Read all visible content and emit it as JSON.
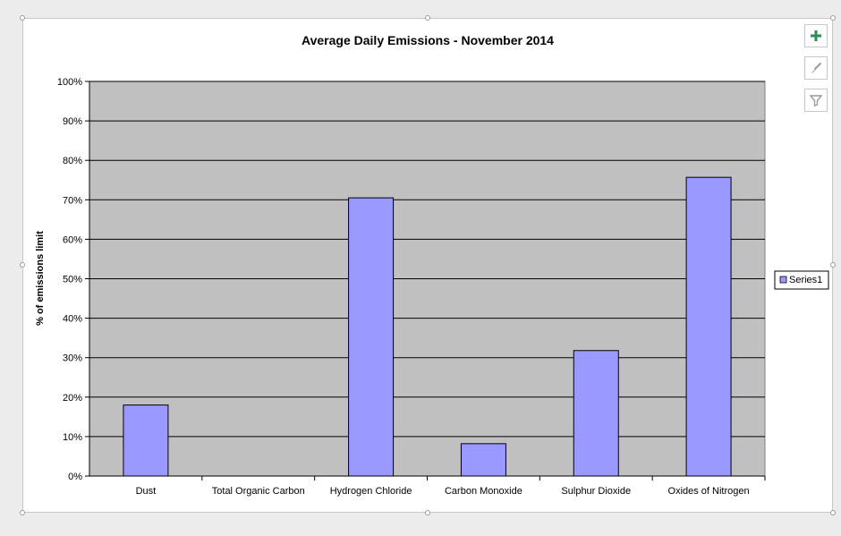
{
  "chart_data": {
    "type": "bar",
    "title": "Average Daily Emissions - November 2014",
    "xlabel": "",
    "ylabel": "% of emissions limit",
    "ylim": [
      0,
      100
    ],
    "yticks": [
      "0%",
      "10%",
      "20%",
      "30%",
      "40%",
      "50%",
      "60%",
      "70%",
      "80%",
      "90%",
      "100%"
    ],
    "grid": true,
    "legend_position": "right",
    "categories": [
      "Dust",
      "Total Organic Carbon",
      "Hydrogen Chloride",
      "Carbon Monoxide",
      "Sulphur Dioxide",
      "Oxides of Nitrogen"
    ],
    "series": [
      {
        "name": "Series1",
        "values": [
          18,
          0,
          70.5,
          8.2,
          31.8,
          75.7
        ],
        "color": "#9999ff"
      }
    ],
    "plot_background": "#c0c0c0"
  },
  "toolbar": {
    "chart_elements_icon": "plus-icon",
    "chart_styles_icon": "brush-icon",
    "chart_filters_icon": "filter-icon",
    "accent": "#2e8b57"
  }
}
